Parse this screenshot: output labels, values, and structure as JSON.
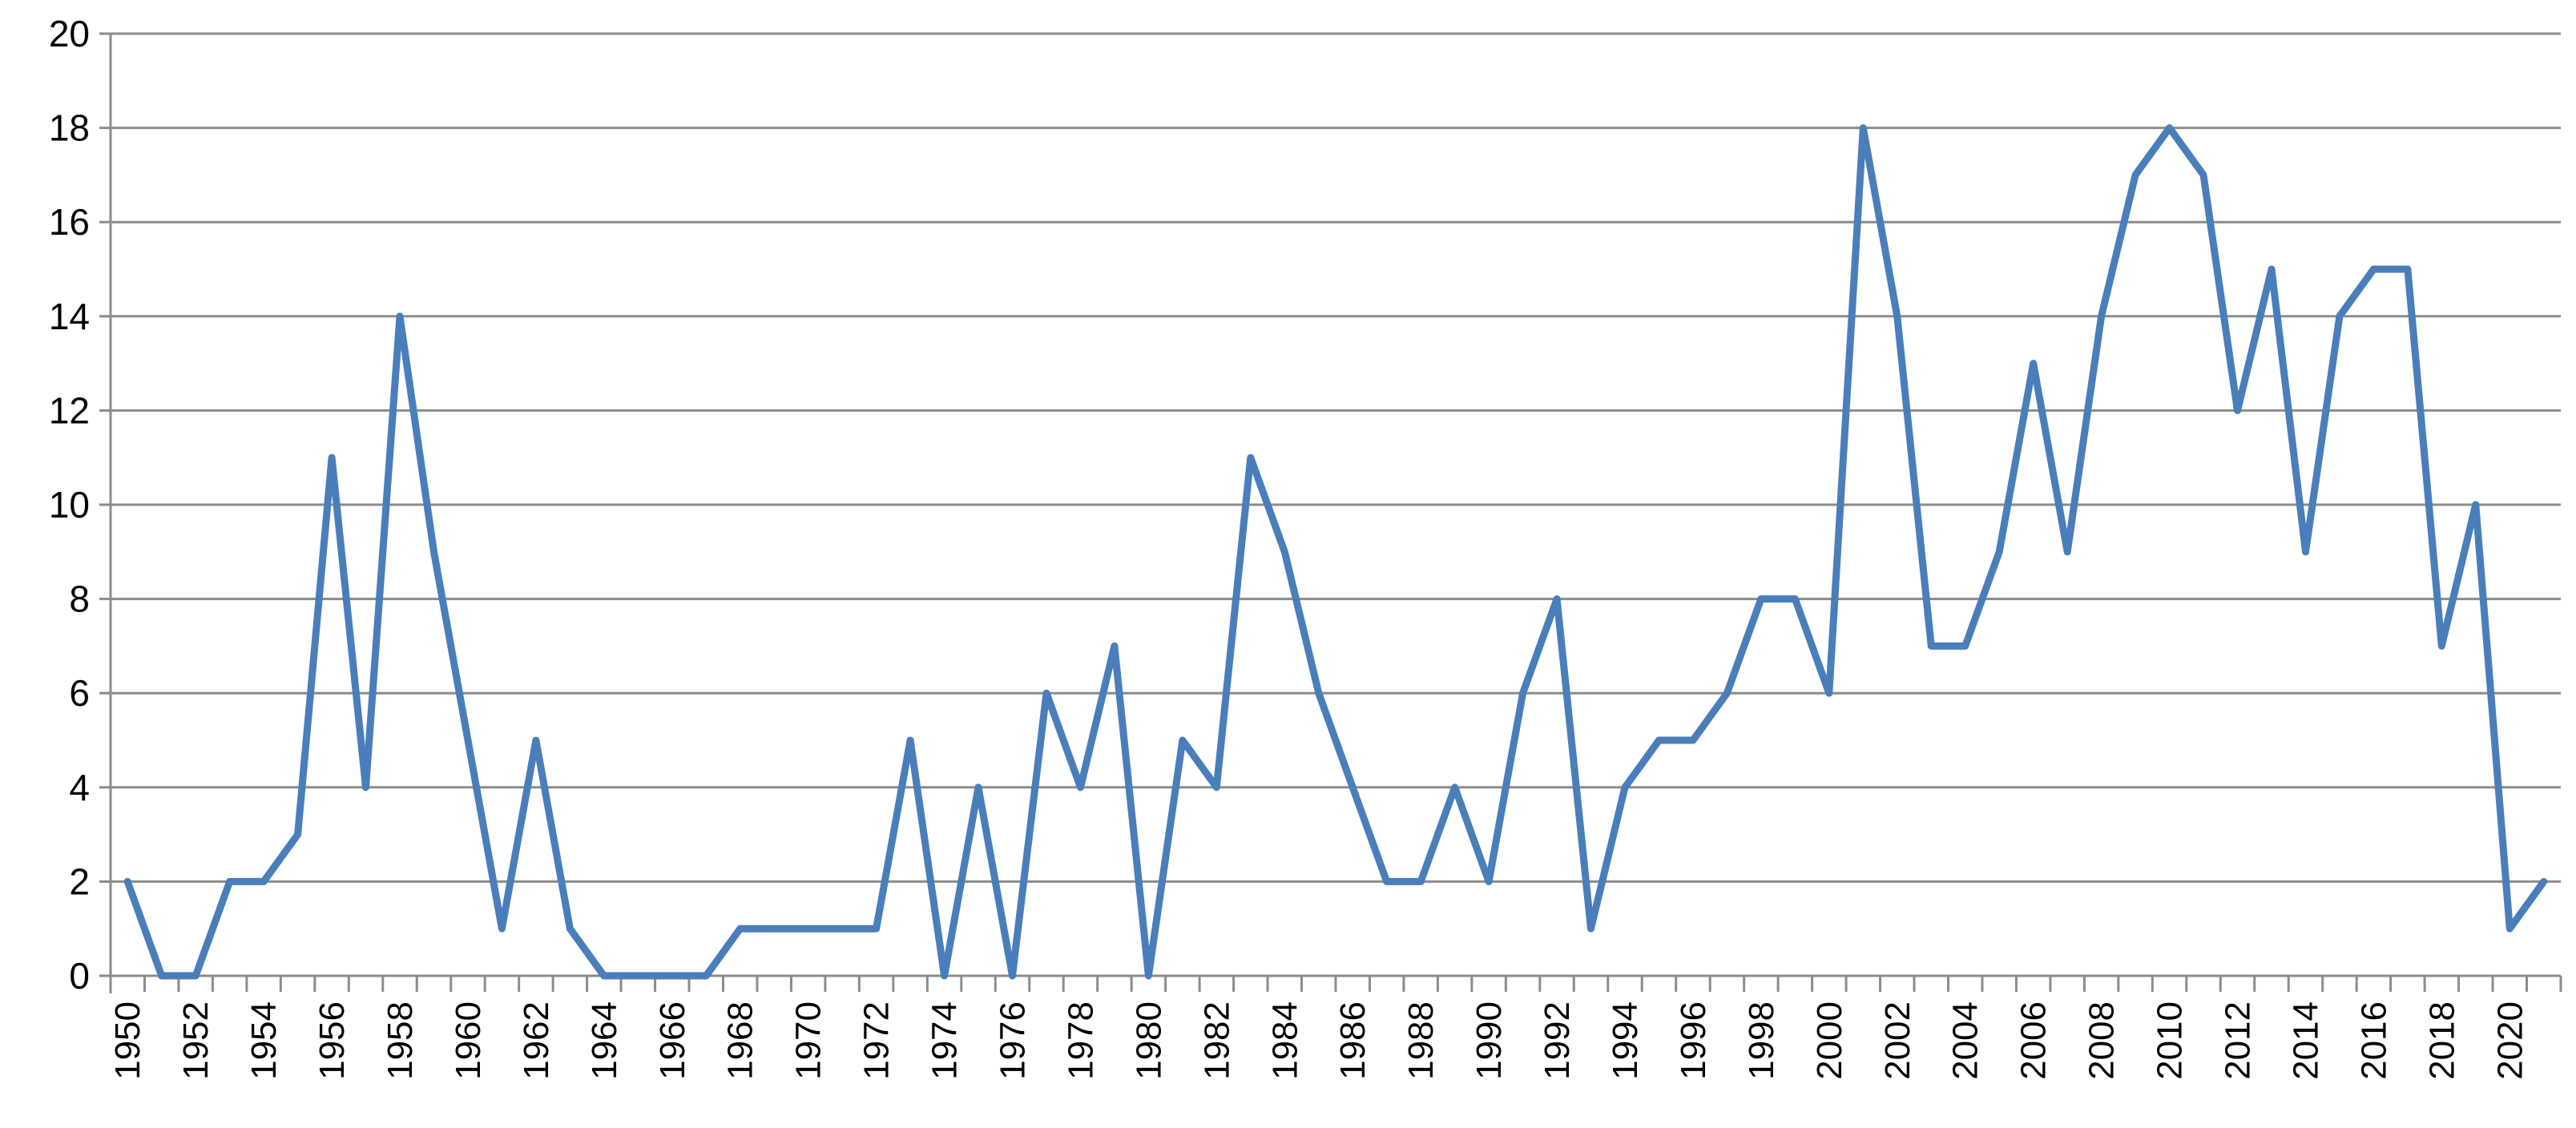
{
  "chart_data": {
    "type": "line",
    "title": "",
    "xlabel": "",
    "ylabel": "",
    "x": [
      1950,
      1951,
      1952,
      1953,
      1954,
      1955,
      1956,
      1957,
      1958,
      1959,
      1960,
      1961,
      1962,
      1963,
      1964,
      1965,
      1966,
      1967,
      1968,
      1969,
      1970,
      1971,
      1972,
      1973,
      1974,
      1975,
      1976,
      1977,
      1978,
      1979,
      1980,
      1981,
      1982,
      1983,
      1984,
      1985,
      1986,
      1987,
      1988,
      1989,
      1990,
      1991,
      1992,
      1993,
      1994,
      1995,
      1996,
      1997,
      1998,
      1999,
      2000,
      2001,
      2002,
      2003,
      2004,
      2005,
      2006,
      2007,
      2008,
      2009,
      2010,
      2011,
      2012,
      2013,
      2014,
      2015,
      2016,
      2017,
      2018,
      2019,
      2020,
      2021
    ],
    "series": [
      {
        "values": [
          2,
          0,
          0,
          2,
          2,
          3,
          11,
          4,
          14,
          9,
          5,
          1,
          5,
          1,
          0,
          0,
          0,
          0,
          1,
          1,
          1,
          1,
          1,
          5,
          0,
          4,
          0,
          6,
          4,
          7,
          0,
          5,
          4,
          11,
          9,
          6,
          4,
          2,
          2,
          4,
          2,
          6,
          8,
          1,
          4,
          5,
          5,
          6,
          8,
          8,
          6,
          18,
          14,
          7,
          7,
          9,
          13,
          9,
          14,
          17,
          18,
          17,
          12,
          15,
          9,
          14,
          15,
          15,
          7,
          10,
          1,
          2
        ],
        "color": "#4a7ebb"
      }
    ],
    "ylim": [
      0,
      20
    ],
    "yticks": [
      0,
      2,
      4,
      6,
      8,
      10,
      12,
      14,
      16,
      18,
      20
    ],
    "xtick_labels": [
      "1950",
      "1952",
      "1954",
      "1956",
      "1958",
      "1960",
      "1962",
      "1964",
      "1966",
      "1968",
      "1970",
      "1972",
      "1974",
      "1976",
      "1978",
      "1980",
      "1982",
      "1984",
      "1986",
      "1988",
      "1990",
      "1992",
      "1994",
      "1996",
      "1998",
      "2000",
      "2002",
      "2004",
      "2006",
      "2008",
      "2010",
      "2012",
      "2014",
      "2016",
      "2018",
      "2020"
    ],
    "grid": true,
    "legend": "none",
    "gridline_color": "#8c8c8c"
  }
}
